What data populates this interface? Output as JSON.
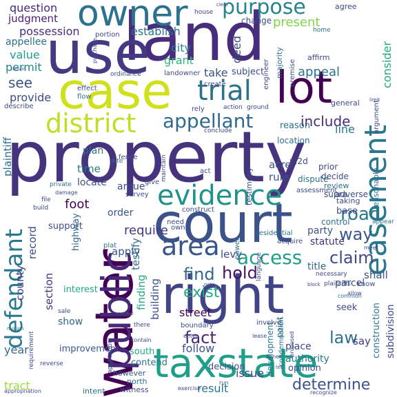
{
  "words": [
    {
      "text": "property",
      "color": "#46337e"
    },
    {
      "text": "land",
      "color": "#472d7b"
    },
    {
      "text": "use",
      "color": "#443983"
    },
    {
      "text": "court",
      "color": "#3b528b"
    },
    {
      "text": "right",
      "color": "#414487"
    },
    {
      "text": "water",
      "color": "#440154"
    },
    {
      "text": "case",
      "color": "#d0e11c"
    },
    {
      "text": "taxstate",
      "color": "#1f9e89"
    },
    {
      "text": "public",
      "color": "#482878"
    },
    {
      "text": "lot",
      "color": "#440154"
    },
    {
      "text": "owner",
      "color": "#2c728e"
    },
    {
      "text": "evidence",
      "color": "#21918c"
    },
    {
      "text": "easement",
      "color": "#2a788e"
    },
    {
      "text": "trial",
      "color": "#2c728e"
    },
    {
      "text": "district",
      "color": "#bddf26"
    },
    {
      "text": "defendant",
      "color": "#2a788e"
    },
    {
      "text": "area",
      "color": "#39568c"
    },
    {
      "text": "purpose",
      "color": "#25848e"
    },
    {
      "text": "appellant",
      "color": "#31688e"
    },
    {
      "text": "access",
      "color": "#1f9e89"
    },
    {
      "text": "road",
      "color": "#2a788e"
    },
    {
      "text": "claim",
      "color": "#3e4a89"
    },
    {
      "text": "fact",
      "color": "#482878"
    },
    {
      "text": "find",
      "color": "#31688e"
    },
    {
      "text": "hold",
      "color": "#471365"
    },
    {
      "text": "law",
      "color": "#2c728e"
    },
    {
      "text": "way",
      "color": "#39568c"
    },
    {
      "text": "exist",
      "color": "#22a884"
    },
    {
      "text": "include",
      "color": "#472d7b"
    },
    {
      "text": "determine",
      "color": "#3b528b"
    },
    {
      "text": "possession",
      "color": "#472d7b"
    },
    {
      "text": "establish",
      "color": "#2c728e"
    },
    {
      "text": "question",
      "color": "#482878"
    },
    {
      "text": "judgment",
      "color": "#481f70"
    },
    {
      "text": "present",
      "color": "#84d44b"
    },
    {
      "text": "deed",
      "color": "#3e4a89"
    },
    {
      "text": "appeal",
      "color": "#2c728e"
    },
    {
      "text": "city",
      "color": "#25848e"
    },
    {
      "text": "grant",
      "color": "#32b67a"
    },
    {
      "text": "take",
      "color": "#3b528b"
    },
    {
      "text": "see",
      "color": "#3b528b"
    },
    {
      "text": "value",
      "color": "#1fa187"
    },
    {
      "text": "permit",
      "color": "#23888e"
    },
    {
      "text": "provide",
      "color": "#3e4a89"
    },
    {
      "text": "consider",
      "color": "#22a884"
    },
    {
      "text": "plaintiff",
      "color": "#2c728e"
    },
    {
      "text": "county",
      "color": "#414487"
    },
    {
      "text": "record",
      "color": "#3e4a89"
    },
    {
      "text": "section",
      "color": "#46337e"
    },
    {
      "text": "year",
      "color": "#31688e"
    },
    {
      "text": "tract",
      "color": "#a0da39"
    },
    {
      "text": "foot",
      "color": "#440154"
    },
    {
      "text": "time",
      "color": "#2a788e"
    },
    {
      "text": "require",
      "color": "#453781"
    },
    {
      "text": "building",
      "color": "#3b528b"
    },
    {
      "text": "finding",
      "color": "#22a884"
    },
    {
      "text": "testify",
      "color": "#2c728e"
    },
    {
      "text": "apply",
      "color": "#39568c"
    },
    {
      "text": "order",
      "color": "#3b528b"
    },
    {
      "text": "street",
      "color": "#440154"
    },
    {
      "text": "follow",
      "color": "#39568c"
    },
    {
      "text": "result",
      "color": "#2a788e"
    },
    {
      "text": "issue",
      "color": "#3e4a89"
    },
    {
      "text": "title",
      "color": "#31688e"
    },
    {
      "text": "parcel",
      "color": "#3b528b"
    },
    {
      "text": "statute",
      "color": "#46337e"
    },
    {
      "text": "party",
      "color": "#3b528b"
    },
    {
      "text": "subdivision",
      "color": "#3e4a89"
    },
    {
      "text": "construction",
      "color": "#2a788e"
    },
    {
      "text": "rule",
      "color": "#3b528b"
    },
    {
      "text": "acre",
      "color": "#3b528b"
    },
    {
      "text": "line",
      "color": "#2a788e"
    },
    {
      "text": "say",
      "color": "#443983"
    },
    {
      "text": "shall",
      "color": "#3b528b"
    },
    {
      "text": "levy",
      "color": "#3e4a89"
    },
    {
      "text": "show",
      "color": "#31688e"
    },
    {
      "text": "support",
      "color": "#3e4a89"
    },
    {
      "text": "highway",
      "color": "#31688e"
    },
    {
      "text": "locate",
      "color": "#3b528b"
    },
    {
      "text": "argue",
      "color": "#3e4a89"
    },
    {
      "text": "plan",
      "color": "#2c728e"
    },
    {
      "text": "development",
      "color": "#2a788e"
    },
    {
      "text": "point",
      "color": "#2c728e"
    },
    {
      "text": "authority",
      "color": "#2a788e"
    },
    {
      "text": "place",
      "color": "#3e4a89"
    },
    {
      "text": "seek",
      "color": "#3e4a89"
    },
    {
      "text": "base",
      "color": "#3e4a89"
    },
    {
      "text": "control",
      "color": "#2c728e"
    },
    {
      "text": "subject",
      "color": "#3e4a89"
    },
    {
      "text": "reason",
      "color": "#2c728e"
    },
    {
      "text": "decision",
      "color": "#3b528b"
    },
    {
      "text": "contend",
      "color": "#2c728e"
    },
    {
      "text": "improvement",
      "color": "#3b528b"
    },
    {
      "text": "interest",
      "color": "#22a884"
    },
    {
      "text": "change",
      "color": "#3e4a89"
    },
    {
      "text": "appellee",
      "color": "#2c728e"
    },
    {
      "text": "opinion",
      "color": "#3e4a89"
    },
    {
      "text": "south",
      "color": "#22a884"
    },
    {
      "text": "witness",
      "color": "#3e4a89"
    },
    {
      "text": "intent",
      "color": "#2c728e"
    },
    {
      "text": "however",
      "color": "#3b528b"
    },
    {
      "text": "north",
      "color": "#2c728e"
    },
    {
      "text": "exercise",
      "color": "#3e4a89"
    },
    {
      "text": "testimony",
      "color": "#3e4a89"
    },
    {
      "text": "location",
      "color": "#2c728e"
    },
    {
      "text": "dispute",
      "color": "#2c728e"
    },
    {
      "text": "supra",
      "color": "#3e4a89"
    },
    {
      "text": "prior",
      "color": "#3e4a89"
    },
    {
      "text": "review",
      "color": "#2c728e"
    },
    {
      "text": "decide",
      "color": "#3e4a89"
    },
    {
      "text": "reasonable",
      "color": "#2c728e"
    },
    {
      "text": "argument",
      "color": "#3e4a89"
    },
    {
      "text": "general",
      "color": "#3e4a89"
    },
    {
      "text": "adverse",
      "color": "#3e4a89"
    },
    {
      "text": "taking",
      "color": "#3e4a89"
    },
    {
      "text": "assessment",
      "color": "#3e4a89"
    },
    {
      "text": "residential",
      "color": "#2c728e"
    },
    {
      "text": "construct",
      "color": "#3e4a89"
    },
    {
      "text": "need",
      "color": "#3e4a89"
    },
    {
      "text": "own",
      "color": "#3e4a89"
    },
    {
      "text": "power",
      "color": "#2c728e"
    },
    {
      "text": "acquire",
      "color": "#3e4a89"
    },
    {
      "text": "language",
      "color": "#3e4a89"
    },
    {
      "text": "condemnation",
      "color": "#2c728e"
    },
    {
      "text": "involve",
      "color": "#3e4a89"
    },
    {
      "text": "boundary",
      "color": "#3e4a89"
    },
    {
      "text": "enter",
      "color": "#3e4a89"
    },
    {
      "text": "proposed",
      "color": "#3e4a89"
    },
    {
      "text": "know",
      "color": "#3e4a89"
    },
    {
      "text": "appear",
      "color": "#2c728e"
    },
    {
      "text": "necessary",
      "color": "#3e4a89"
    },
    {
      "text": "affirm",
      "color": "#3e4a89"
    },
    {
      "text": "majority",
      "color": "#2c728e"
    },
    {
      "text": "premise",
      "color": "#3e4a89"
    },
    {
      "text": "landowner",
      "color": "#3e4a89"
    },
    {
      "text": "ordinance",
      "color": "#3e4a89"
    },
    {
      "text": "effect",
      "color": "#3e4a89"
    },
    {
      "text": "flow",
      "color": "#2c728e"
    },
    {
      "text": "describe",
      "color": "#3e4a89"
    },
    {
      "text": "engineer",
      "color": "#3e4a89"
    },
    {
      "text": "portion",
      "color": "#3e4a89"
    },
    {
      "text": "house",
      "color": "#3e4a89"
    },
    {
      "text": "agree",
      "color": "#3e4a89"
    },
    {
      "text": "home",
      "color": "#2c728e"
    },
    {
      "text": "create",
      "color": "#3e4a89"
    },
    {
      "text": "rely",
      "color": "#3e4a89"
    },
    {
      "text": "action",
      "color": "#3e4a89"
    },
    {
      "text": "ground",
      "color": "#3e4a89"
    },
    {
      "text": "conclude",
      "color": "#3e4a89"
    },
    {
      "text": "site",
      "color": "#2c728e"
    },
    {
      "text": "fence",
      "color": "#3e4a89"
    },
    {
      "text": "act",
      "color": "#3e4a89"
    },
    {
      "text": "maintain",
      "color": "#3e4a89"
    },
    {
      "text": "give",
      "color": "#3e4a89"
    },
    {
      "text": "survey",
      "color": "#3e4a89"
    },
    {
      "text": "private",
      "color": "#2c728e"
    },
    {
      "text": "damage",
      "color": "#3e4a89"
    },
    {
      "text": "file",
      "color": "#3e4a89"
    },
    {
      "text": "build",
      "color": "#3e4a89"
    },
    {
      "text": "plat",
      "color": "#2c728e"
    },
    {
      "text": "sale",
      "color": "#3e4a89"
    },
    {
      "text": "application",
      "color": "#3e4a89"
    },
    {
      "text": "there",
      "color": "#3e4a89"
    },
    {
      "text": "contain",
      "color": "#3e4a89"
    },
    {
      "text": "requirement",
      "color": "#3e4a89"
    },
    {
      "text": "reverse",
      "color": "#3e4a89"
    },
    {
      "text": "motion",
      "color": "#2c728e"
    },
    {
      "text": "appropriation",
      "color": "#3e4a89"
    },
    {
      "text": "p.2d",
      "color": "#3e4a89"
    },
    {
      "text": "note",
      "color": "#3e4a89"
    },
    {
      "text": "plaintiffs",
      "color": "#3e4a89"
    },
    {
      "text": "common",
      "color": "#2c728e"
    },
    {
      "text": "lease",
      "color": "#3e4a89"
    },
    {
      "text": "zone",
      "color": "#3e4a89"
    },
    {
      "text": "recognize",
      "color": "#3e4a89"
    },
    {
      "text": "tell",
      "color": "#3e4a89"
    },
    {
      "text": "run",
      "color": "#3e4a89"
    },
    {
      "text": "allow",
      "color": "#3e4a89"
    },
    {
      "text": "meet",
      "color": "#3e4a89"
    },
    {
      "text": "block",
      "color": "#3e4a89"
    },
    {
      "text": "limit",
      "color": "#3e4a89"
    },
    {
      "text": "remain",
      "color": "#3e4a89"
    },
    {
      "text": "purchase",
      "color": "#3e4a89"
    },
    {
      "text": "clear",
      "color": "#3e4a89"
    },
    {
      "text": "owned",
      "color": "#3e4a89"
    }
  ]
}
